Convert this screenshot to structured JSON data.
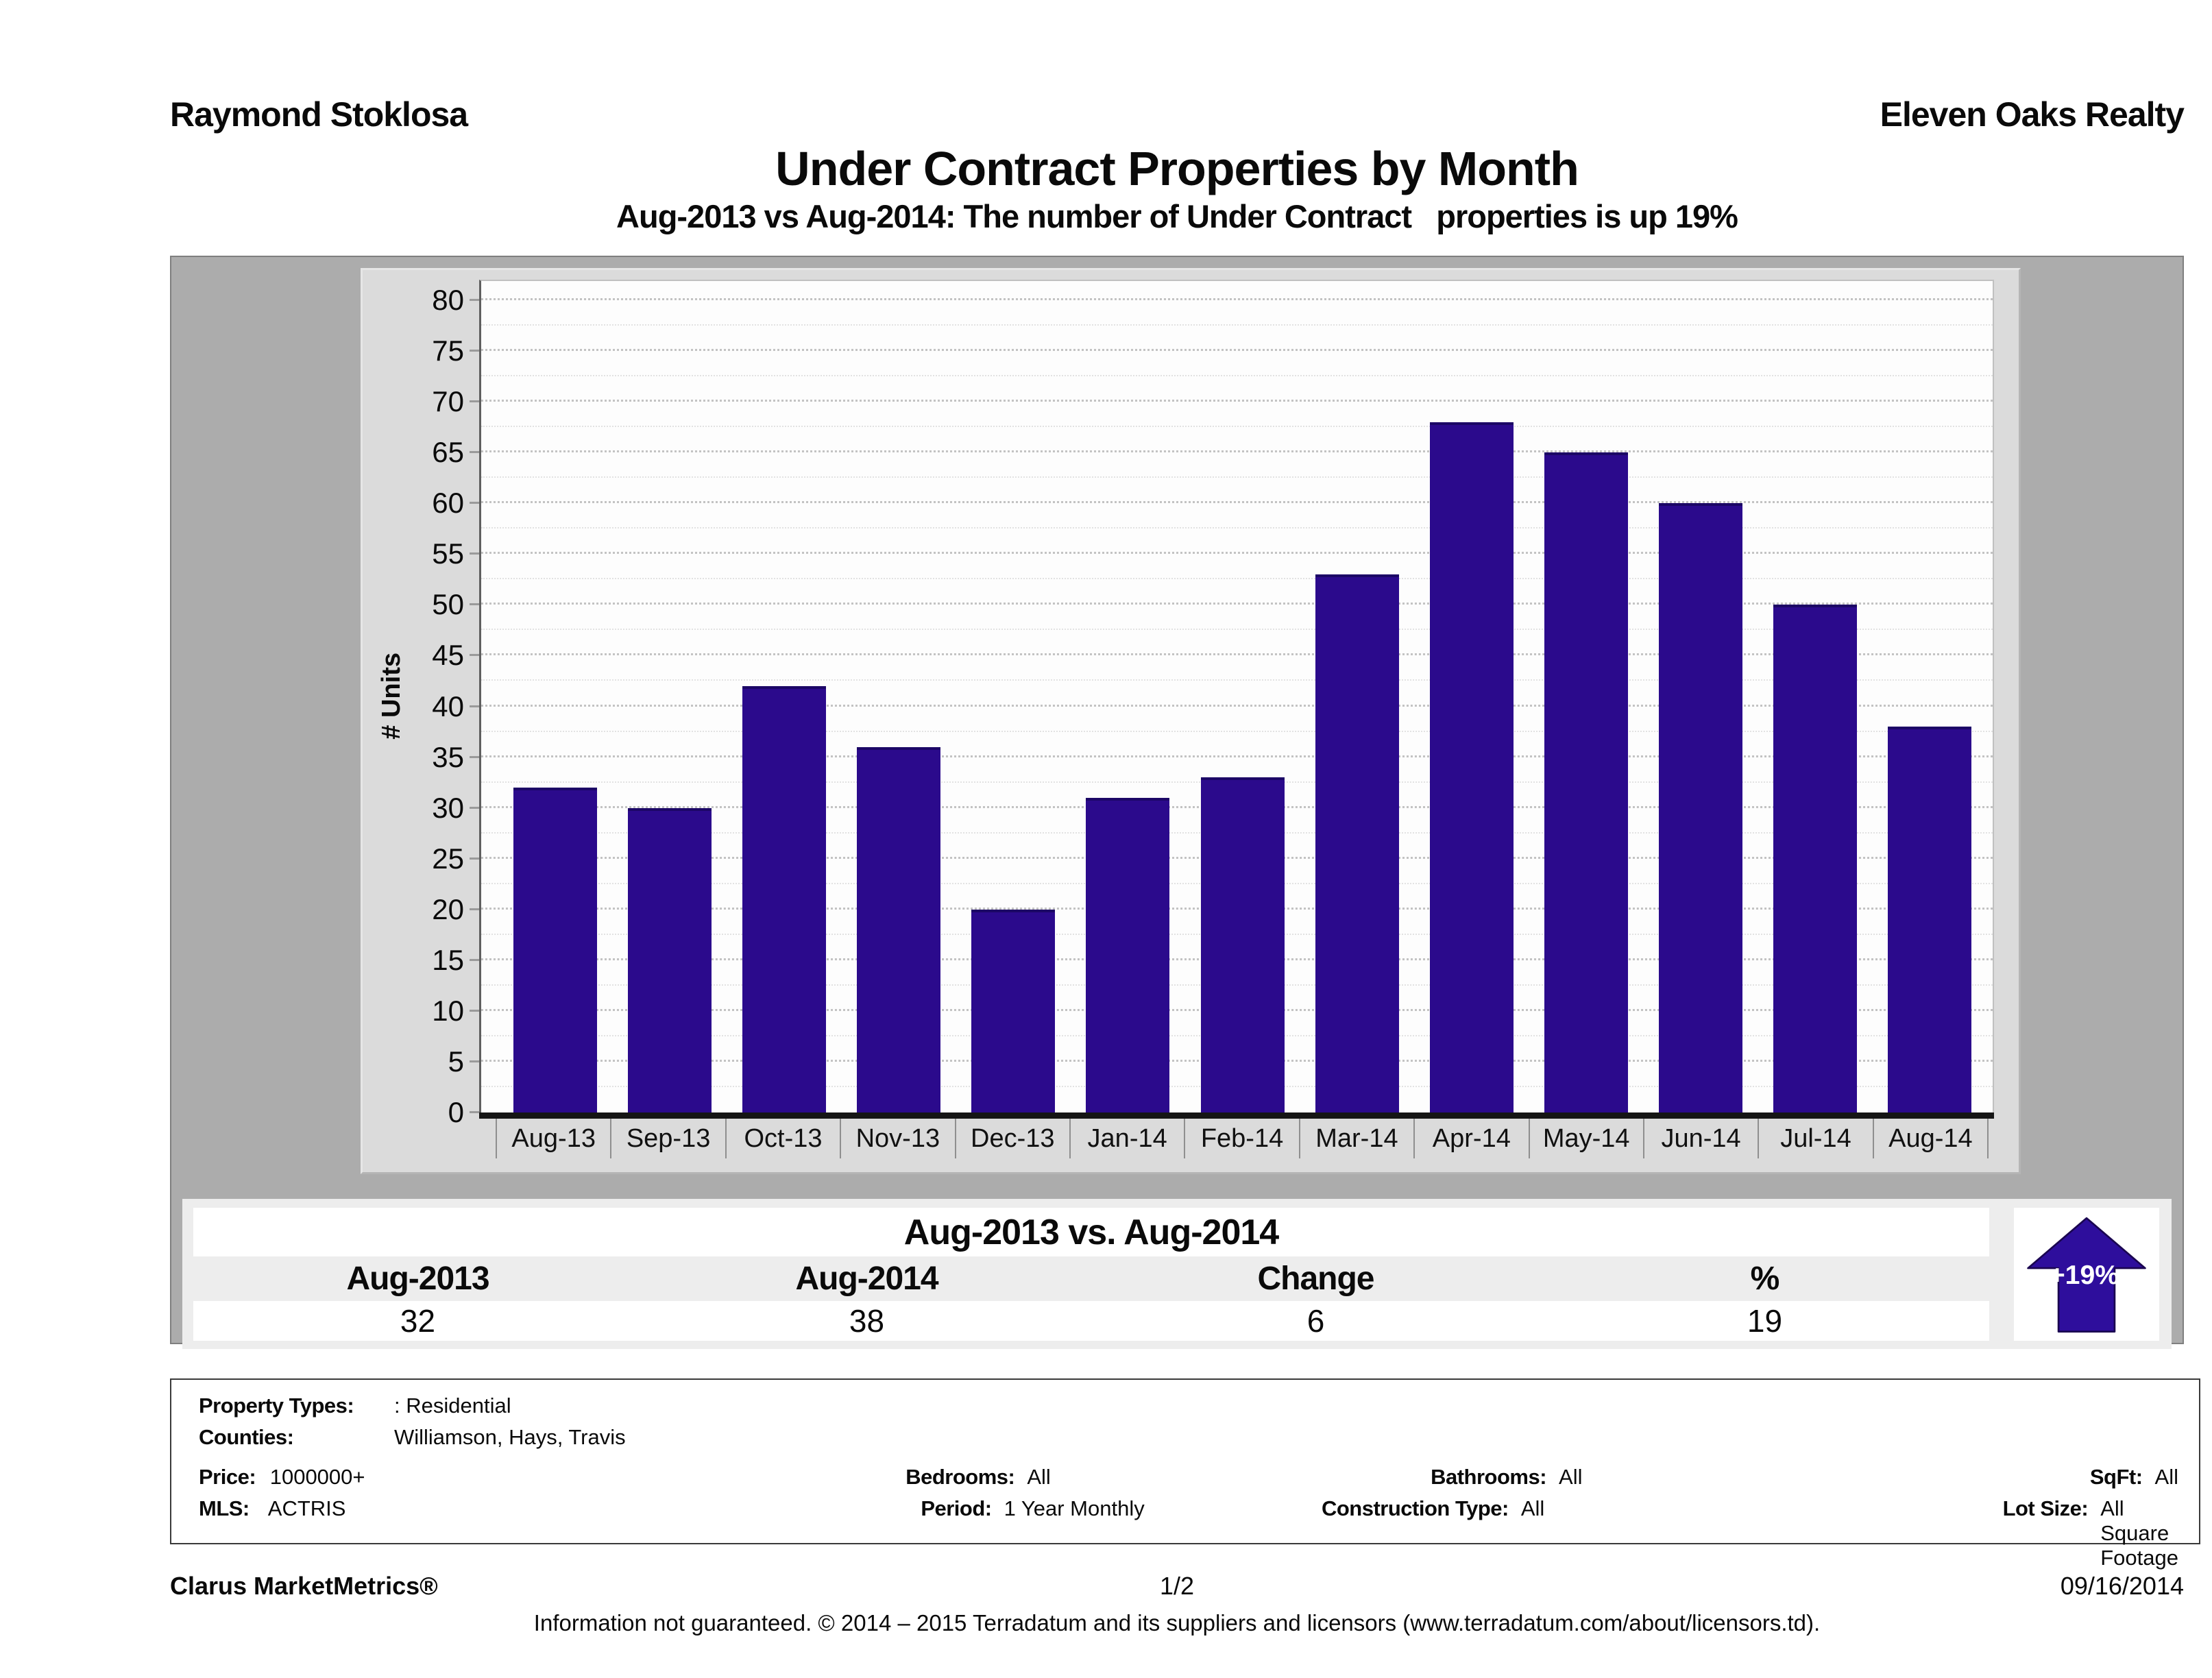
{
  "header": {
    "agent": "Raymond Stoklosa",
    "brokerage": "Eleven Oaks Realty"
  },
  "title": "Under Contract Properties by Month",
  "subtitle": "Aug-2013 vs Aug-2014: The number of Under Contract   properties is up 19%",
  "chart_data": {
    "type": "bar",
    "title": "Under Contract Properties by Month",
    "categories": [
      "Aug-13",
      "Sep-13",
      "Oct-13",
      "Nov-13",
      "Dec-13",
      "Jan-14",
      "Feb-14",
      "Mar-14",
      "Apr-14",
      "May-14",
      "Jun-14",
      "Jul-14",
      "Aug-14"
    ],
    "values": [
      32,
      30,
      42,
      36,
      20,
      31,
      33,
      53,
      68,
      65,
      60,
      50,
      38
    ],
    "xlabel": "",
    "ylabel": "# Units",
    "ylim": [
      0,
      80
    ],
    "ytick_step": 5,
    "grid": true,
    "legend_position": "none",
    "bar_color": "#2b0a8c"
  },
  "summary": {
    "title": "Aug-2013 vs. Aug-2014",
    "columns": [
      "Aug-2013",
      "Aug-2014",
      "Change",
      "%"
    ],
    "values": [
      "32",
      "38",
      "6",
      "19"
    ],
    "badge": {
      "label": "+19%",
      "direction": "up",
      "color": "#2e0e9c",
      "outline": "#1a0550"
    }
  },
  "details": {
    "property_types_label": "Property Types:",
    "property_types": ": Residential",
    "counties_label": "Counties:",
    "counties": "Williamson, Hays, Travis",
    "price_label": "Price:",
    "price": "1000000+",
    "bedrooms_label": "Bedrooms:",
    "bedrooms": "All",
    "bathrooms_label": "Bathrooms:",
    "bathrooms": "All",
    "sqft_label": "SqFt:",
    "sqft": "All",
    "mls_label": "MLS:",
    "mls": "ACTRIS",
    "period_label": "Period:",
    "period": "1 Year Monthly",
    "construction_label": "Construction Type:",
    "construction": "All",
    "lot_size_label": "Lot Size:",
    "lot_size": "All Square Footage"
  },
  "footer": {
    "brand": "Clarus MarketMetrics®",
    "page": "1/2",
    "date": "09/16/2014",
    "disclaimer": "Information not guaranteed. © 2014 – 2015 Terradatum and its suppliers and licensors (www.terradatum.com/about/licensors.td)."
  }
}
